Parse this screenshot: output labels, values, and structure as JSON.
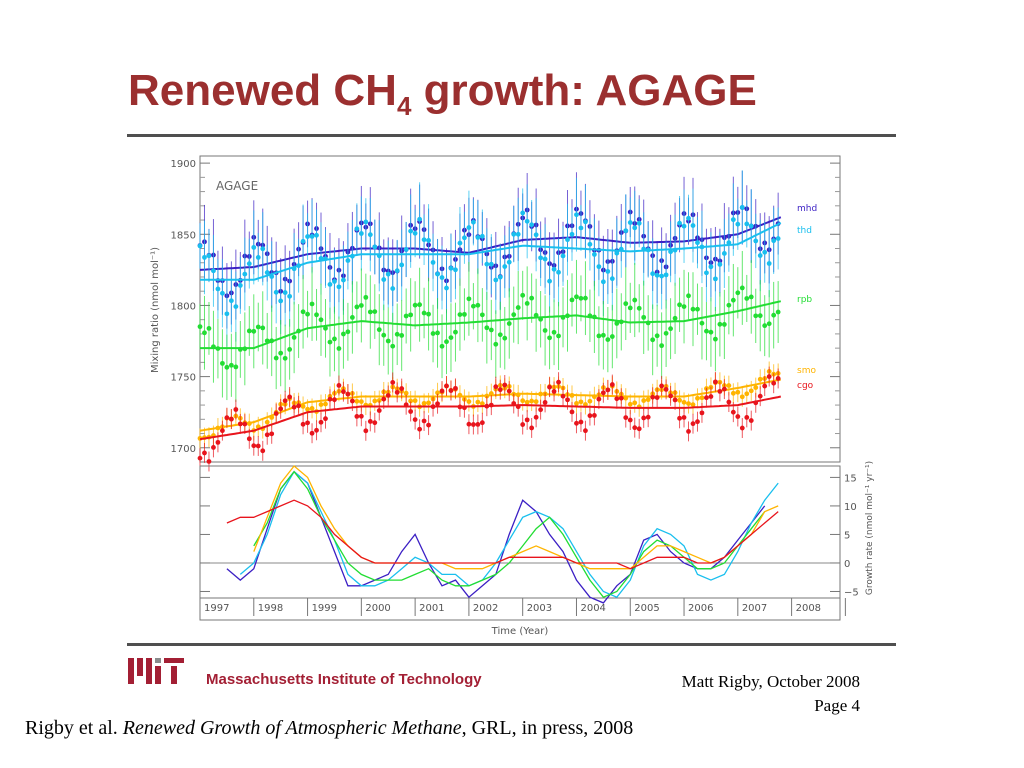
{
  "slide": {
    "title_main": "Renewed CH",
    "title_sub": "4",
    "title_rest": " growth: AGAGE",
    "institution": "Massachusetts Institute of Technology",
    "author_date": "Matt Rigby, October 2008",
    "page": "Page 4",
    "citation_authors": "Rigby et al. ",
    "citation_title": "Renewed Growth of Atmospheric Methane",
    "citation_rest": ", GRL, in press, 2008"
  },
  "chart_data": [
    {
      "type": "line",
      "annotation": "AGAGE",
      "xlabel": "",
      "ylabel": "Mixing ratio (nmol mol⁻¹)",
      "xlim": [
        1997.0,
        2008.9
      ],
      "ylim": [
        1690,
        1905
      ],
      "yticks": [
        1700,
        1750,
        1800,
        1850,
        1900
      ],
      "colors": {
        "mhd": "#3b1fc4",
        "thd": "#19bfee",
        "rpb": "#22dd33",
        "smo": "#ffb400",
        "cgo": "#e8141c"
      },
      "series": [
        {
          "name": "mhd",
          "x": [
            1997.0,
            1998.0,
            1999.0,
            2000.0,
            2001.0,
            2002.0,
            2003.0,
            2004.0,
            2005.0,
            2006.0,
            2007.0,
            2007.8
          ],
          "trend": [
            1825,
            1827,
            1836,
            1840,
            1840,
            1837,
            1846,
            1848,
            1844,
            1845,
            1850,
            1862
          ],
          "seasonal_amplitude": 18
        },
        {
          "name": "thd",
          "x": [
            1997.0,
            1998.0,
            1999.0,
            2000.0,
            2001.0,
            2002.0,
            2003.0,
            2004.0,
            2005.0,
            2006.0,
            2007.0,
            2007.8
          ],
          "trend": [
            1818,
            1818,
            1830,
            1836,
            1836,
            1836,
            1842,
            1840,
            1838,
            1840,
            1843,
            1858
          ],
          "seasonal_amplitude": 20
        },
        {
          "name": "rpb",
          "x": [
            1997.0,
            1998.0,
            1999.0,
            2000.0,
            2001.0,
            2002.0,
            2003.0,
            2004.0,
            2005.0,
            2006.0,
            2007.0,
            2007.8
          ],
          "trend": [
            1770,
            1770,
            1784,
            1789,
            1786,
            1788,
            1791,
            1793,
            1788,
            1789,
            1796,
            1803
          ],
          "seasonal_amplitude": 14
        },
        {
          "name": "smo",
          "x": [
            1997.0,
            1998.0,
            1999.0,
            2000.0,
            2001.0,
            2002.0,
            2003.0,
            2004.0,
            2005.0,
            2006.0,
            2007.0,
            2007.8
          ],
          "trend": [
            1712,
            1718,
            1732,
            1736,
            1736,
            1736,
            1738,
            1737,
            1736,
            1736,
            1742,
            1748
          ],
          "seasonal_amplitude": 6
        },
        {
          "name": "cgo",
          "x": [
            1997.0,
            1998.0,
            1999.0,
            2000.0,
            2001.0,
            2002.0,
            2003.0,
            2004.0,
            2005.0,
            2006.0,
            2007.0,
            2007.8
          ],
          "trend": [
            1706,
            1712,
            1725,
            1729,
            1729,
            1729,
            1730,
            1729,
            1728,
            1728,
            1730,
            1736
          ],
          "seasonal_amplitude": 14
        }
      ]
    },
    {
      "type": "line",
      "xlabel": "Time (Year)",
      "ylabel": "Growth rate (nmol mol⁻¹ yr⁻¹)",
      "xlim": [
        1997.0,
        2008.9
      ],
      "ylim": [
        -10,
        17
      ],
      "yticks": [
        15,
        10,
        5,
        0,
        -5
      ],
      "ytick_labels": [
        "15",
        "10",
        "5",
        "0",
        "−5"
      ],
      "categories": [
        "1997",
        "1998",
        "1999",
        "2000",
        "2001",
        "2002",
        "2003",
        "2004",
        "2005",
        "2006",
        "2007",
        "2008"
      ],
      "x": [
        1997.5,
        1997.75,
        1998.0,
        1998.25,
        1998.5,
        1998.75,
        1999.0,
        1999.25,
        1999.5,
        1999.75,
        2000.0,
        2000.25,
        2000.5,
        2000.75,
        2001.0,
        2001.25,
        2001.5,
        2001.75,
        2002.0,
        2002.25,
        2002.5,
        2002.75,
        2003.0,
        2003.25,
        2003.5,
        2003.75,
        2004.0,
        2004.25,
        2004.5,
        2004.75,
        2005.0,
        2005.25,
        2005.5,
        2005.75,
        2006.0,
        2006.25,
        2006.5,
        2006.75,
        2007.0,
        2007.25,
        2007.5,
        2007.75
      ],
      "series": [
        {
          "name": "mhd",
          "values": [
            -1,
            -3,
            -1,
            6,
            13,
            16,
            14,
            8,
            2,
            -4,
            -4,
            -3,
            -2,
            2,
            5,
            0,
            -4,
            -3,
            -6,
            -4,
            -2,
            5,
            11,
            9,
            5,
            2,
            -3,
            -6,
            -7,
            -4,
            -2,
            4,
            5,
            2,
            0,
            -1,
            -1,
            1,
            4,
            7,
            10,
            null
          ]
        },
        {
          "name": "thd",
          "values": [
            null,
            -2,
            0,
            5,
            12,
            16,
            14,
            9,
            4,
            -2,
            -4,
            -4,
            -3,
            -1,
            1,
            0,
            -2,
            -2,
            -4,
            -3,
            0,
            4,
            8,
            9,
            8,
            6,
            2,
            -2,
            -5,
            -6,
            -3,
            3,
            6,
            5,
            3,
            -2,
            -3,
            -2,
            2,
            7,
            11,
            14
          ]
        },
        {
          "name": "rpb",
          "values": [
            null,
            null,
            3,
            7,
            13,
            16,
            13,
            8,
            4,
            0,
            -2,
            -3,
            -3,
            -3,
            -2,
            -1,
            -3,
            -4,
            -4,
            -3,
            -2,
            0,
            3,
            6,
            8,
            5,
            1,
            -3,
            -6,
            -5,
            -2,
            2,
            4,
            3,
            1,
            -1,
            -1,
            0,
            3,
            6,
            9,
            null
          ]
        },
        {
          "name": "smo",
          "values": [
            null,
            null,
            2,
            8,
            14,
            17,
            15,
            10,
            6,
            3,
            1,
            0,
            0,
            0,
            0,
            0,
            0,
            -1,
            -1,
            -1,
            0,
            1,
            2,
            3,
            2,
            1,
            0,
            -1,
            -1,
            -1,
            -1,
            1,
            3,
            3,
            2,
            1,
            0,
            1,
            3,
            5,
            9,
            10
          ]
        },
        {
          "name": "cgo",
          "values": [
            7,
            8,
            8,
            9,
            10,
            11,
            10,
            8,
            5,
            3,
            1,
            0,
            0,
            0,
            0,
            0,
            0,
            0,
            0,
            0,
            0,
            1,
            1,
            1,
            1,
            1,
            0,
            0,
            0,
            0,
            -1,
            0,
            1,
            1,
            1,
            0,
            0,
            1,
            3,
            5,
            7,
            9
          ]
        }
      ]
    }
  ]
}
